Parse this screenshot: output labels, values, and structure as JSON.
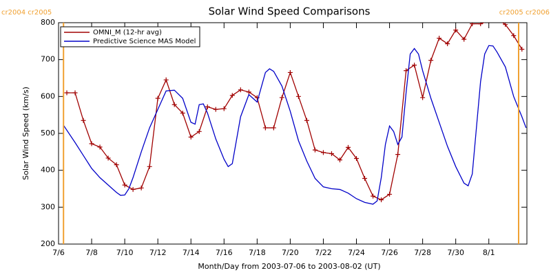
{
  "chart_data": {
    "type": "line",
    "title": "Solar Wind Speed Comparisons",
    "xlabel": "Month/Day from 2003-07-06 to 2003-08-02 (UT)",
    "ylabel": "Solar Wind Speed (km/s)",
    "xlim": [
      0,
      28.3
    ],
    "ylim": [
      200,
      800
    ],
    "yticks": [
      200,
      300,
      400,
      500,
      600,
      700,
      800
    ],
    "xticks": [
      {
        "value": 0,
        "label": "7/6"
      },
      {
        "value": 2,
        "label": "7/8"
      },
      {
        "value": 4,
        "label": "7/10"
      },
      {
        "value": 6,
        "label": "7/12"
      },
      {
        "value": 8,
        "label": "7/14"
      },
      {
        "value": 10,
        "label": "7/16"
      },
      {
        "value": 12,
        "label": "7/18"
      },
      {
        "value": 14,
        "label": "7/20"
      },
      {
        "value": 16,
        "label": "7/22"
      },
      {
        "value": 18,
        "label": "7/24"
      },
      {
        "value": 20,
        "label": "7/26"
      },
      {
        "value": 22,
        "label": "7/28"
      },
      {
        "value": 24,
        "label": "7/30"
      },
      {
        "value": 26,
        "label": "8/1"
      }
    ],
    "legend": "upper left",
    "vlines": [
      {
        "x": 0.3,
        "label": "cr2004 cr2005"
      },
      {
        "x": 27.8,
        "label": "cr2005 cr2006"
      }
    ],
    "vline_color": "#f0a030",
    "series": [
      {
        "name": "OMNI_M (12-hr avg)",
        "color": "#a00000",
        "marker": "+",
        "x": [
          0.5,
          1,
          1.5,
          2,
          2.5,
          3,
          3.5,
          4,
          4.5,
          5,
          5.5,
          6,
          6.5,
          7,
          7.5,
          8,
          8.5,
          9,
          9.5,
          10,
          10.5,
          11,
          11.5,
          12,
          12.5,
          13,
          13.5,
          14,
          14.5,
          15,
          15.5,
          16,
          16.5,
          17,
          17.5,
          18,
          18.5,
          19,
          19.5,
          20,
          20.5,
          21,
          21.5,
          22,
          22.5,
          23,
          23.5,
          24,
          24.5,
          25,
          25.5,
          26,
          26.5,
          27,
          27.5,
          28
        ],
        "values": [
          610,
          610,
          535,
          472,
          463,
          433,
          415,
          360,
          348,
          352,
          410,
          595,
          645,
          578,
          555,
          490,
          505,
          572,
          565,
          567,
          603,
          618,
          612,
          597,
          515,
          515,
          597,
          665,
          600,
          535,
          455,
          448,
          445,
          428,
          462,
          432,
          378,
          330,
          320,
          335,
          443,
          670,
          685,
          597,
          698,
          758,
          743,
          780,
          755,
          797,
          797,
          805,
          810,
          795,
          765,
          728
        ]
      },
      {
        "name": "Predictive Science MAS Model",
        "color": "#0000c8",
        "x": [
          0.3,
          1,
          1.5,
          2,
          2.5,
          3,
          3.5,
          3.75,
          4,
          4.25,
          4.5,
          5,
          5.5,
          6,
          6.5,
          7,
          7.5,
          8,
          8.25,
          8.5,
          8.75,
          9,
          9.5,
          10,
          10.25,
          10.5,
          11,
          11.5,
          12,
          12.5,
          12.75,
          13,
          13.5,
          14,
          14.5,
          15,
          15.5,
          16,
          16.5,
          17,
          17.5,
          18,
          18.5,
          19,
          19.25,
          19.5,
          19.75,
          20,
          20.25,
          20.5,
          20.75,
          21,
          21.25,
          21.5,
          21.75,
          22,
          22.5,
          23,
          23.5,
          24,
          24.5,
          24.75,
          25,
          25.5,
          25.75,
          26,
          26.25,
          26.5,
          27,
          27.5,
          28,
          28.25
        ],
        "values": [
          522,
          475,
          440,
          405,
          380,
          360,
          340,
          332,
          333,
          350,
          380,
          450,
          515,
          565,
          615,
          617,
          595,
          530,
          525,
          578,
          580,
          555,
          485,
          430,
          410,
          418,
          545,
          605,
          585,
          665,
          675,
          668,
          628,
          560,
          480,
          425,
          378,
          355,
          350,
          348,
          338,
          323,
          313,
          308,
          317,
          380,
          470,
          520,
          505,
          470,
          490,
          610,
          715,
          730,
          715,
          670,
          595,
          530,
          465,
          410,
          365,
          358,
          390,
          640,
          715,
          738,
          737,
          720,
          680,
          600,
          545,
          515
        ]
      }
    ]
  }
}
